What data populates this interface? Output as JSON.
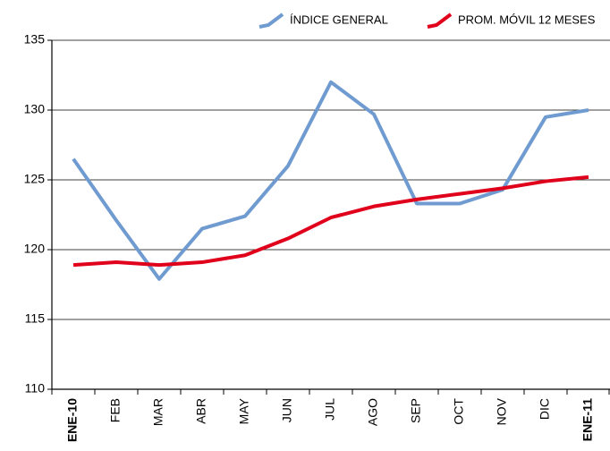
{
  "chart_data": {
    "type": "line",
    "categories": [
      "ENE-10",
      "FEB",
      "MAR",
      "ABR",
      "MAY",
      "JUN",
      "JUL",
      "AGO",
      "SEP",
      "OCT",
      "NOV",
      "DIC",
      "ENE-11"
    ],
    "series": [
      {
        "name": "ÍNDICE GENERAL",
        "color": "#6f9bd0",
        "values": [
          126.5,
          122.1,
          117.9,
          121.5,
          122.4,
          126.0,
          132.0,
          129.7,
          123.3,
          123.3,
          124.3,
          129.5,
          130.0
        ]
      },
      {
        "name": "PROM. MÓVIL 12 MESES",
        "color": "#e0001b",
        "values": [
          118.9,
          119.1,
          118.9,
          119.1,
          119.6,
          120.8,
          122.3,
          123.1,
          123.6,
          124.0,
          124.4,
          124.9,
          125.2
        ]
      }
    ],
    "ylim": [
      110,
      135
    ],
    "yticks": [
      110,
      115,
      120,
      125,
      130,
      135
    ],
    "grid": true,
    "legend": "top-right"
  }
}
